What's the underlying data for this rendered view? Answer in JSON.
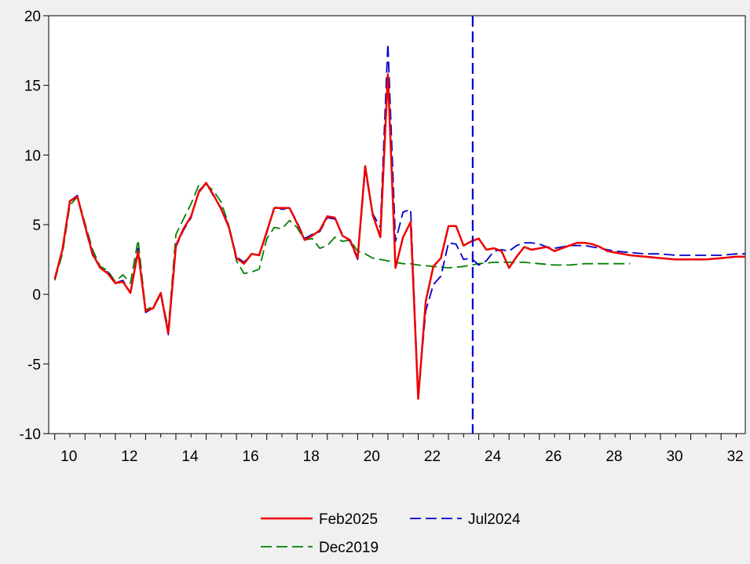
{
  "chart_data": {
    "type": "line",
    "title": "",
    "xlabel": "",
    "ylabel": "",
    "xlim": [
      9.8,
      32.8
    ],
    "ylim": [
      -10,
      20
    ],
    "x_ticks": [
      10,
      12,
      14,
      16,
      18,
      20,
      22,
      24,
      26,
      28,
      30,
      32
    ],
    "y_ticks": [
      -10,
      -5,
      0,
      5,
      10,
      15,
      20
    ],
    "x_tick_labels": [
      "10",
      "12",
      "14",
      "16",
      "18",
      "20",
      "22",
      "24",
      "26",
      "28",
      "30",
      "32"
    ],
    "y_tick_labels": [
      "-10",
      "-5",
      "0",
      "5",
      "10",
      "15",
      "20"
    ],
    "grid": false,
    "legend_position": "bottom",
    "vertical_line": {
      "x": 23.8,
      "color": "#0000cc",
      "style": "dashed"
    },
    "series": [
      {
        "name": "Feb2025",
        "color": "#ee0000",
        "style": "solid",
        "points": [
          [
            10.0,
            1.1
          ],
          [
            10.25,
            3.2
          ],
          [
            10.5,
            6.7
          ],
          [
            10.75,
            7.0
          ],
          [
            11.0,
            4.9
          ],
          [
            11.25,
            2.9
          ],
          [
            11.5,
            1.9
          ],
          [
            11.75,
            1.5
          ],
          [
            12.0,
            0.8
          ],
          [
            12.25,
            0.9
          ],
          [
            12.5,
            0.1
          ],
          [
            12.75,
            3.1
          ],
          [
            13.0,
            -1.2
          ],
          [
            13.25,
            -1.0
          ],
          [
            13.5,
            0.1
          ],
          [
            13.75,
            -2.8
          ],
          [
            14.0,
            3.5
          ],
          [
            14.25,
            4.7
          ],
          [
            14.5,
            5.6
          ],
          [
            14.75,
            7.3
          ],
          [
            15.0,
            8.0
          ],
          [
            15.25,
            7.1
          ],
          [
            15.5,
            6.1
          ],
          [
            15.75,
            4.8
          ],
          [
            16.0,
            2.6
          ],
          [
            16.25,
            2.2
          ],
          [
            16.5,
            2.9
          ],
          [
            16.75,
            2.8
          ],
          [
            17.0,
            4.5
          ],
          [
            17.25,
            6.2
          ],
          [
            17.5,
            6.2
          ],
          [
            17.75,
            6.2
          ],
          [
            18.0,
            5.1
          ],
          [
            18.25,
            3.9
          ],
          [
            18.5,
            4.2
          ],
          [
            18.75,
            4.6
          ],
          [
            19.0,
            5.6
          ],
          [
            19.25,
            5.5
          ],
          [
            19.5,
            4.2
          ],
          [
            19.75,
            3.9
          ],
          [
            20.0,
            2.6
          ],
          [
            20.25,
            9.2
          ],
          [
            20.5,
            5.7
          ],
          [
            20.75,
            4.1
          ],
          [
            21.0,
            15.8
          ],
          [
            21.25,
            1.9
          ],
          [
            21.5,
            4.1
          ],
          [
            21.75,
            5.2
          ],
          [
            22.0,
            -7.5
          ],
          [
            22.25,
            -0.5
          ],
          [
            22.5,
            2.0
          ],
          [
            22.75,
            2.6
          ],
          [
            23.0,
            4.9
          ],
          [
            23.25,
            4.9
          ],
          [
            23.5,
            3.5
          ],
          [
            23.75,
            3.8
          ],
          [
            24.0,
            4.0
          ],
          [
            24.25,
            3.2
          ],
          [
            24.5,
            3.3
          ],
          [
            24.75,
            3.1
          ],
          [
            25.0,
            1.9
          ],
          [
            25.25,
            2.7
          ],
          [
            25.5,
            3.4
          ],
          [
            25.75,
            3.2
          ],
          [
            26.0,
            3.3
          ],
          [
            26.25,
            3.4
          ],
          [
            26.5,
            3.1
          ],
          [
            26.75,
            3.3
          ],
          [
            27.0,
            3.5
          ],
          [
            27.25,
            3.7
          ],
          [
            27.5,
            3.7
          ],
          [
            27.75,
            3.6
          ],
          [
            28.0,
            3.4
          ],
          [
            28.25,
            3.1
          ],
          [
            28.5,
            3.0
          ],
          [
            28.75,
            2.9
          ],
          [
            29.0,
            2.8
          ],
          [
            29.5,
            2.7
          ],
          [
            30.0,
            2.6
          ],
          [
            30.5,
            2.5
          ],
          [
            31.0,
            2.5
          ],
          [
            31.5,
            2.5
          ],
          [
            32.0,
            2.6
          ],
          [
            32.5,
            2.7
          ],
          [
            32.8,
            2.7
          ]
        ]
      },
      {
        "name": "Jul2024",
        "color": "#0000cc",
        "style": "dashed",
        "points": [
          [
            10.0,
            1.1
          ],
          [
            10.25,
            3.2
          ],
          [
            10.5,
            6.7
          ],
          [
            10.75,
            7.1
          ],
          [
            11.0,
            4.8
          ],
          [
            11.25,
            2.8
          ],
          [
            11.5,
            1.9
          ],
          [
            11.75,
            1.6
          ],
          [
            12.0,
            0.8
          ],
          [
            12.25,
            1.0
          ],
          [
            12.5,
            0.1
          ],
          [
            12.75,
            3.3
          ],
          [
            13.0,
            -1.3
          ],
          [
            13.25,
            -1.0
          ],
          [
            13.5,
            0.0
          ],
          [
            13.75,
            -2.9
          ],
          [
            14.0,
            3.4
          ],
          [
            14.25,
            4.6
          ],
          [
            14.5,
            5.5
          ],
          [
            14.75,
            7.4
          ],
          [
            15.0,
            8.0
          ],
          [
            15.25,
            7.0
          ],
          [
            15.5,
            6.2
          ],
          [
            15.75,
            4.9
          ],
          [
            16.0,
            2.7
          ],
          [
            16.25,
            2.3
          ],
          [
            16.5,
            2.9
          ],
          [
            16.75,
            2.8
          ],
          [
            17.0,
            4.4
          ],
          [
            17.25,
            6.3
          ],
          [
            17.5,
            6.1
          ],
          [
            17.75,
            6.2
          ],
          [
            18.0,
            5.2
          ],
          [
            18.25,
            4.0
          ],
          [
            18.5,
            4.3
          ],
          [
            18.75,
            4.5
          ],
          [
            19.0,
            5.5
          ],
          [
            19.25,
            5.4
          ],
          [
            19.5,
            4.3
          ],
          [
            19.75,
            3.8
          ],
          [
            20.0,
            2.5
          ],
          [
            20.25,
            8.9
          ],
          [
            20.5,
            5.8
          ],
          [
            20.75,
            4.8
          ],
          [
            21.0,
            18.0
          ],
          [
            21.25,
            3.8
          ],
          [
            21.5,
            5.9
          ],
          [
            21.75,
            6.1
          ],
          [
            22.0,
            -7.3
          ],
          [
            22.25,
            -1.2
          ],
          [
            22.5,
            0.7
          ],
          [
            22.75,
            1.3
          ],
          [
            23.0,
            3.7
          ],
          [
            23.25,
            3.6
          ],
          [
            23.5,
            2.5
          ],
          [
            23.75,
            2.6
          ],
          [
            24.0,
            2.1
          ],
          [
            24.25,
            2.4
          ],
          [
            24.5,
            3.1
          ],
          [
            24.75,
            3.2
          ],
          [
            25.0,
            3.1
          ],
          [
            25.25,
            3.5
          ],
          [
            25.5,
            3.7
          ],
          [
            25.75,
            3.7
          ],
          [
            26.0,
            3.6
          ],
          [
            26.25,
            3.4
          ],
          [
            26.5,
            3.3
          ],
          [
            26.75,
            3.4
          ],
          [
            27.0,
            3.5
          ],
          [
            27.5,
            3.5
          ],
          [
            28.0,
            3.3
          ],
          [
            28.5,
            3.1
          ],
          [
            29.0,
            3.0
          ],
          [
            29.5,
            2.9
          ],
          [
            30.0,
            2.9
          ],
          [
            30.5,
            2.8
          ],
          [
            31.0,
            2.8
          ],
          [
            31.5,
            2.8
          ],
          [
            32.0,
            2.8
          ],
          [
            32.5,
            2.9
          ],
          [
            32.8,
            2.9
          ]
        ]
      },
      {
        "name": "Dec2019",
        "color": "#008000",
        "style": "dashed",
        "points": [
          [
            10.0,
            1.0
          ],
          [
            10.25,
            2.9
          ],
          [
            10.5,
            6.4
          ],
          [
            10.75,
            7.0
          ],
          [
            11.0,
            5.1
          ],
          [
            11.25,
            3.2
          ],
          [
            11.5,
            2.0
          ],
          [
            11.75,
            1.7
          ],
          [
            12.0,
            0.9
          ],
          [
            12.25,
            1.4
          ],
          [
            12.5,
            0.8
          ],
          [
            12.75,
            3.9
          ],
          [
            13.0,
            -1.1
          ],
          [
            13.25,
            -0.9
          ],
          [
            13.5,
            0.1
          ],
          [
            13.75,
            -2.5
          ],
          [
            14.0,
            4.3
          ],
          [
            14.25,
            5.4
          ],
          [
            14.5,
            6.5
          ],
          [
            14.75,
            7.8
          ],
          [
            15.0,
            7.9
          ],
          [
            15.25,
            7.4
          ],
          [
            15.5,
            6.6
          ],
          [
            15.75,
            4.9
          ],
          [
            16.0,
            2.4
          ],
          [
            16.25,
            1.5
          ],
          [
            16.5,
            1.6
          ],
          [
            16.75,
            1.8
          ],
          [
            17.0,
            4.0
          ],
          [
            17.25,
            4.8
          ],
          [
            17.5,
            4.7
          ],
          [
            17.75,
            5.3
          ],
          [
            18.0,
            4.8
          ],
          [
            18.25,
            3.9
          ],
          [
            18.5,
            4.0
          ],
          [
            18.75,
            3.3
          ],
          [
            19.0,
            3.5
          ],
          [
            19.25,
            4.1
          ],
          [
            19.5,
            3.8
          ],
          [
            19.75,
            3.9
          ],
          [
            20.0,
            3.1
          ],
          [
            20.25,
            2.9
          ],
          [
            20.5,
            2.6
          ],
          [
            20.75,
            2.5
          ],
          [
            21.0,
            2.4
          ],
          [
            21.25,
            2.3
          ],
          [
            21.5,
            2.2
          ],
          [
            21.75,
            2.2
          ],
          [
            22.0,
            2.1
          ],
          [
            22.5,
            2.0
          ],
          [
            23.0,
            1.9
          ],
          [
            23.5,
            2.0
          ],
          [
            24.0,
            2.2
          ],
          [
            24.5,
            2.3
          ],
          [
            25.0,
            2.3
          ],
          [
            25.5,
            2.3
          ],
          [
            26.0,
            2.2
          ],
          [
            26.5,
            2.1
          ],
          [
            27.0,
            2.1
          ],
          [
            27.5,
            2.2
          ],
          [
            28.0,
            2.2
          ],
          [
            28.5,
            2.2
          ],
          [
            29.0,
            2.2
          ]
        ]
      }
    ]
  }
}
